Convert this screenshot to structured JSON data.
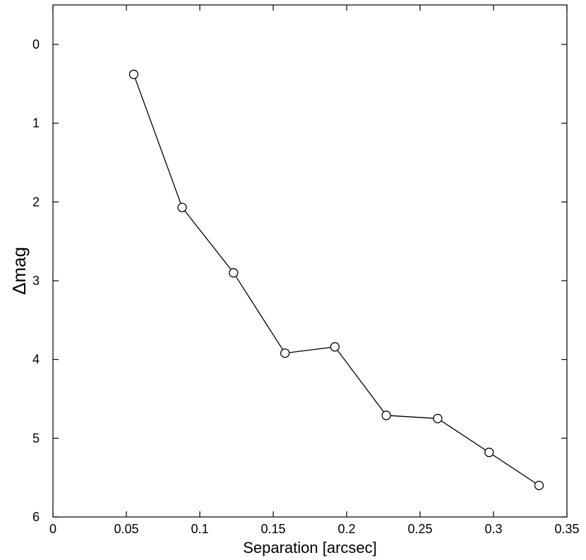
{
  "chart_data": {
    "type": "line",
    "title": "",
    "xlabel": "Separation [arcsec]",
    "ylabel": "Δmag",
    "xlim": [
      0,
      0.35
    ],
    "ylim": [
      0,
      6
    ],
    "y_inverted": true,
    "grid": false,
    "x_ticks": [
      "0",
      "0.05",
      "0.1",
      "0.15",
      "0.2",
      "0.25",
      "0.3",
      "0.35"
    ],
    "y_ticks": [
      "0",
      "1",
      "2",
      "3",
      "4",
      "5",
      "6"
    ],
    "marker": "open-circle",
    "line_color": "#000000",
    "series": [
      {
        "x": [
          0.055,
          0.088,
          0.123,
          0.158,
          0.192,
          0.227,
          0.262,
          0.297,
          0.331
        ],
        "y": [
          0.38,
          2.07,
          2.9,
          3.92,
          3.84,
          4.71,
          4.75,
          5.18,
          5.6
        ]
      }
    ]
  }
}
